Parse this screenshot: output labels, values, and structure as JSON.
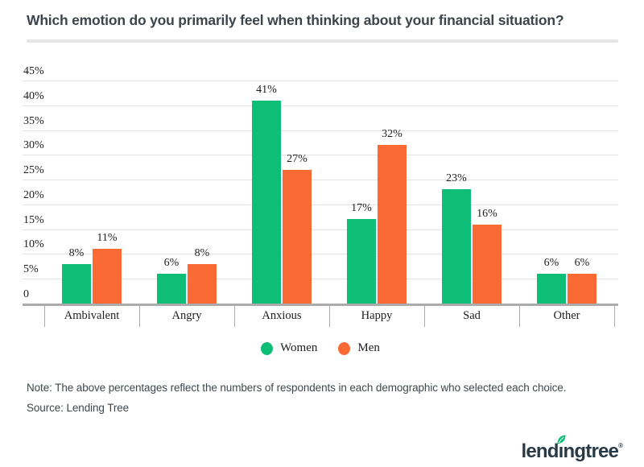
{
  "title": "Which emotion do you primarily feel when thinking about your financial situation?",
  "note": "Note: The above percentages reflect the numbers of respondents in each demographic who selected each choice.",
  "source": "Source: Lending Tree",
  "logo": {
    "text_pre": "lend",
    "text_i": "ı",
    "text_post": "ngtree",
    "trademark": "®",
    "text_color": "#2A3946",
    "leaf_color": "#0FBE76"
  },
  "colors": {
    "women": "#0FBE76",
    "men": "#FA6A34",
    "gridline": "#E3E3E3",
    "axis": "#ABABAB",
    "chart_text": "#1E1E1E",
    "body_text": "#3F474E"
  },
  "chart_data": {
    "type": "bar",
    "title": "Which emotion do you primarily feel when thinking about your financial situation?",
    "categories": [
      "Ambivalent",
      "Angry",
      "Anxious",
      "Happy",
      "Sad",
      "Other"
    ],
    "series": [
      {
        "name": "Women",
        "color": "#0FBE76",
        "values": [
          8,
          6,
          41,
          17,
          23,
          6
        ]
      },
      {
        "name": "Men",
        "color": "#FA6A34",
        "values": [
          11,
          8,
          27,
          32,
          16,
          6
        ]
      }
    ],
    "value_suffix": "%",
    "xlabel": "",
    "ylabel": "",
    "ylim": [
      0,
      45
    ],
    "ytick_step": 5,
    "ytick_labels": [
      "0",
      "5%",
      "10%",
      "15%",
      "20%",
      "25%",
      "30%",
      "35%",
      "40%",
      "45%"
    ],
    "grid": true,
    "data_labels": true,
    "legend_position": "bottom"
  }
}
